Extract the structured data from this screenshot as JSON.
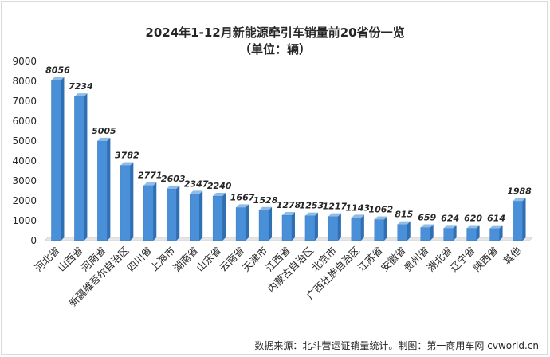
{
  "chart_data": {
    "type": "bar",
    "title": "2024年1-12月新能源牵引车销量前20省份一览",
    "subtitle": "（单位：辆）",
    "categories": [
      "河北省",
      "山西省",
      "河南省",
      "新疆维吾尔自治区",
      "四川省",
      "上海市",
      "湖南省",
      "山东省",
      "云南省",
      "天津市",
      "江西省",
      "内蒙古自治区",
      "北京市",
      "广西壮族自治区",
      "江苏省",
      "安徽省",
      "贵州省",
      "湖北省",
      "辽宁省",
      "陕西省",
      "其他"
    ],
    "values": [
      8056,
      7234,
      5005,
      3782,
      2771,
      2603,
      2347,
      2240,
      1667,
      1528,
      1278,
      1253,
      1217,
      1143,
      1062,
      815,
      659,
      624,
      620,
      614,
      1988
    ],
    "yticks": [
      0,
      1000,
      2000,
      3000,
      4000,
      5000,
      6000,
      7000,
      8000,
      9000
    ],
    "ylim": [
      0,
      9000
    ],
    "grid": false,
    "legend": "none",
    "bar_color": "#4a90d9",
    "bar_dark": "#2f6fb3",
    "bar_light": "#8fbde8"
  },
  "footer": {
    "source": "数据来源：北斗营运证销量统计。制图：第一商用车网 cvworld.cn"
  }
}
